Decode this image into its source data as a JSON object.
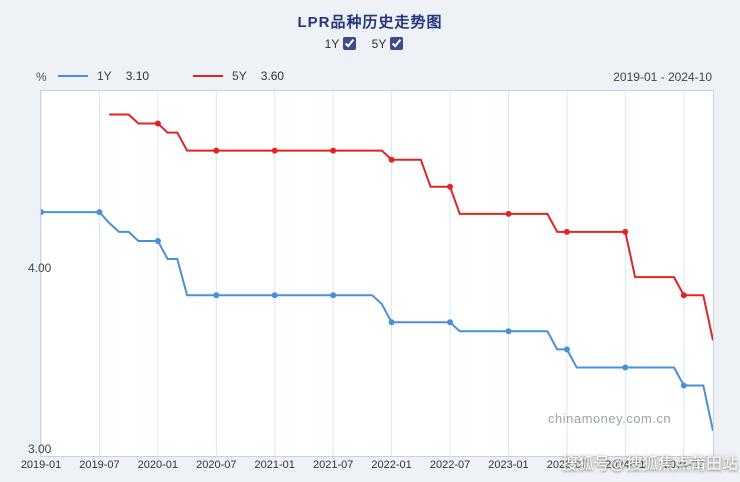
{
  "header": {
    "title": "LPR品种历史走势图",
    "toggles": [
      {
        "label": "1Y",
        "checked": true
      },
      {
        "label": "5Y",
        "checked": true
      }
    ]
  },
  "legend": {
    "unit": "%",
    "items": [
      {
        "label": "1Y",
        "value": "3.10",
        "color": "#4a90d9"
      },
      {
        "label": "5Y",
        "value": "3.60",
        "color": "#e02525"
      }
    ],
    "date_range": "2019-01 - 2024-10"
  },
  "watermarks": {
    "chart": "chinamoney.com.cn",
    "overlay": "搜狐号@搜狐焦点莆田站"
  },
  "chart_data": {
    "type": "line",
    "title": "LPR品种历史走势图",
    "ylabel": "%",
    "x_start": "2019-01",
    "x_end": "2024-10",
    "x_ticks": [
      "2019-01",
      "2019-07",
      "2020-01",
      "2020-07",
      "2021-01",
      "2021-07",
      "2022-01",
      "2022-07",
      "2023-01",
      "2023-07",
      "2024-01",
      "2024-07"
    ],
    "x_tick_month_indices": [
      0,
      6,
      12,
      18,
      24,
      30,
      36,
      42,
      48,
      54,
      60,
      66
    ],
    "x_month_range": [
      0,
      69
    ],
    "y_ticks": [
      {
        "label": "4.00",
        "value": 4.0
      },
      {
        "label": "3.00",
        "value": 3.0
      }
    ],
    "y_range": [
      2.96,
      4.98
    ],
    "grid": "vertical-only",
    "legend_position": "top-left",
    "marker_every": 6,
    "series": [
      {
        "name": "1Y",
        "color": "#4a90d9",
        "current": "3.10",
        "start_month": 0,
        "values": [
          4.31,
          4.31,
          4.31,
          4.31,
          4.31,
          4.31,
          4.31,
          4.25,
          4.2,
          4.2,
          4.15,
          4.15,
          4.15,
          4.05,
          4.05,
          3.85,
          3.85,
          3.85,
          3.85,
          3.85,
          3.85,
          3.85,
          3.85,
          3.85,
          3.85,
          3.85,
          3.85,
          3.85,
          3.85,
          3.85,
          3.85,
          3.85,
          3.85,
          3.85,
          3.85,
          3.8,
          3.7,
          3.7,
          3.7,
          3.7,
          3.7,
          3.7,
          3.7,
          3.65,
          3.65,
          3.65,
          3.65,
          3.65,
          3.65,
          3.65,
          3.65,
          3.65,
          3.65,
          3.55,
          3.55,
          3.45,
          3.45,
          3.45,
          3.45,
          3.45,
          3.45,
          3.45,
          3.45,
          3.45,
          3.45,
          3.45,
          3.35,
          3.35,
          3.35,
          3.1
        ]
      },
      {
        "name": "5Y",
        "color": "#e02525",
        "current": "3.60",
        "start_month": 7,
        "values": [
          4.85,
          4.85,
          4.85,
          4.8,
          4.8,
          4.8,
          4.75,
          4.75,
          4.65,
          4.65,
          4.65,
          4.65,
          4.65,
          4.65,
          4.65,
          4.65,
          4.65,
          4.65,
          4.65,
          4.65,
          4.65,
          4.65,
          4.65,
          4.65,
          4.65,
          4.65,
          4.65,
          4.65,
          4.65,
          4.6,
          4.6,
          4.6,
          4.6,
          4.45,
          4.45,
          4.45,
          4.3,
          4.3,
          4.3,
          4.3,
          4.3,
          4.3,
          4.3,
          4.3,
          4.3,
          4.3,
          4.2,
          4.2,
          4.2,
          4.2,
          4.2,
          4.2,
          4.2,
          4.2,
          3.95,
          3.95,
          3.95,
          3.95,
          3.95,
          3.85,
          3.85,
          3.85,
          3.6
        ]
      }
    ]
  }
}
